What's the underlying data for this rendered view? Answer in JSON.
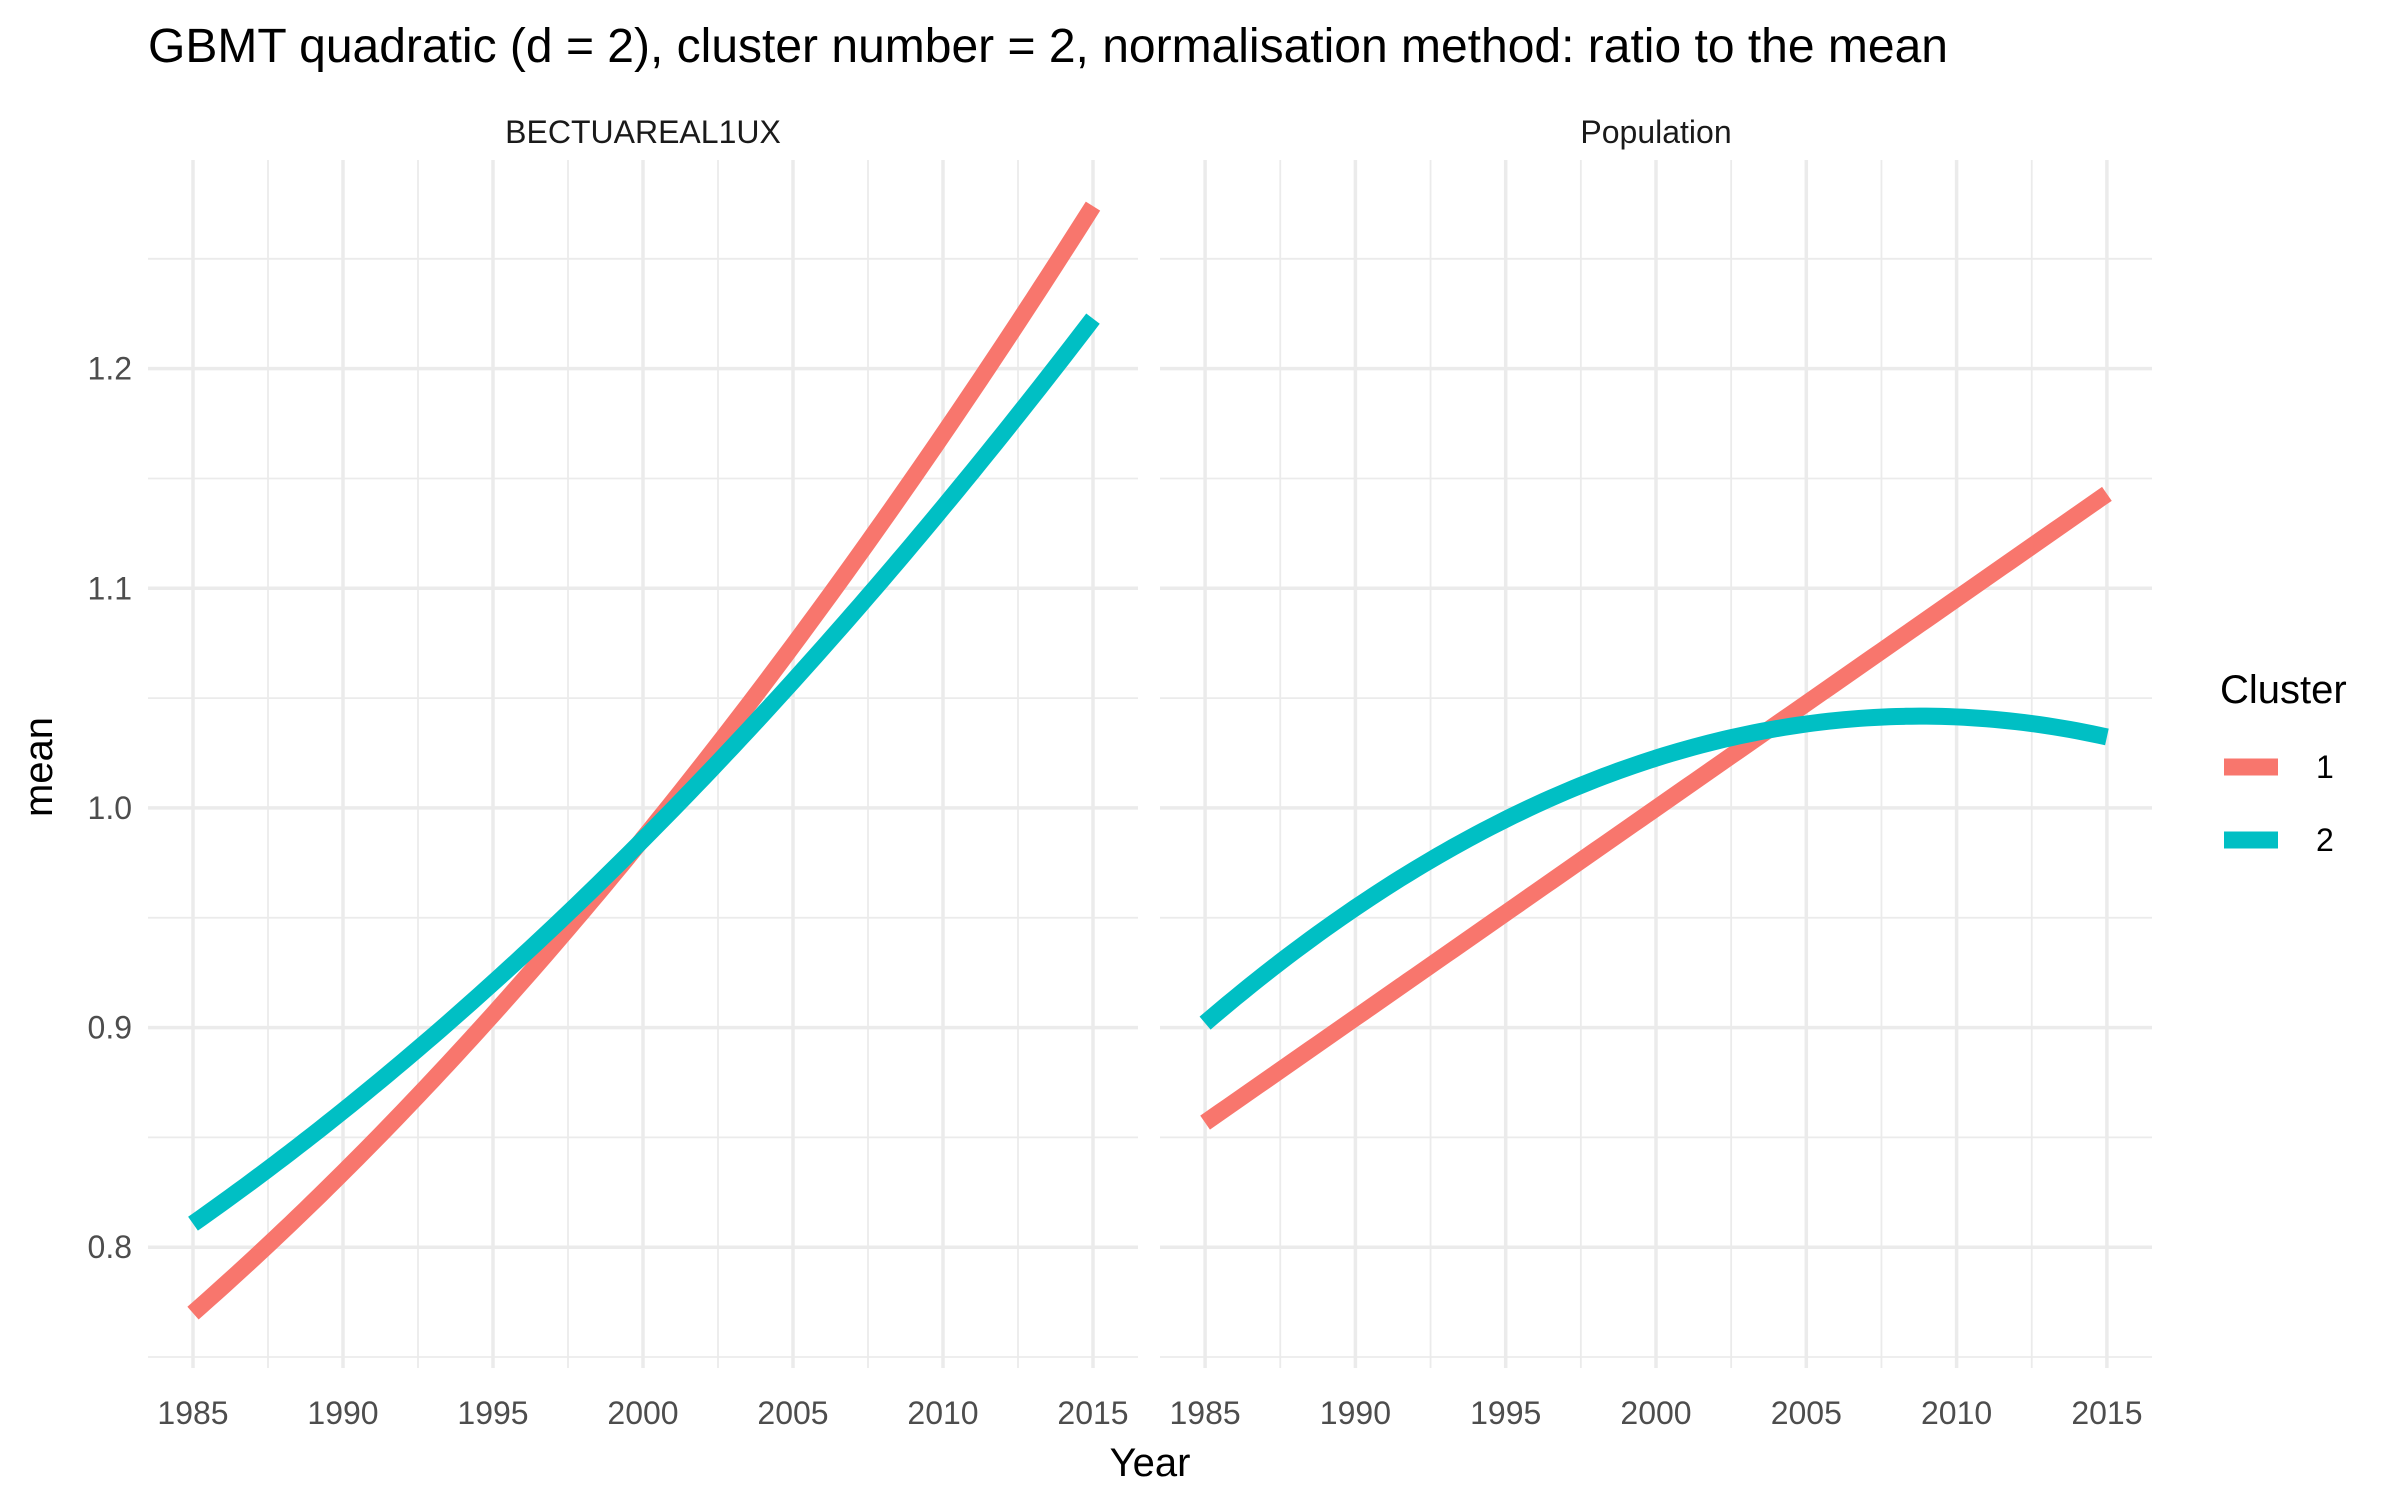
{
  "chart_data": {
    "type": "line",
    "title": "GBMT quadratic (d = 2), cluster number = 2, normalisation method: ratio to the mean",
    "xlabel": "Year",
    "ylabel": "mean",
    "xlim": [
      1983.5,
      2016.5
    ],
    "ylim": [
      0.745,
      1.295
    ],
    "x_ticks": [
      1985,
      1990,
      1995,
      2000,
      2005,
      2010,
      2015
    ],
    "x_tick_labels": [
      "1985",
      "1990",
      "1995",
      "2000",
      "2005",
      "2010",
      "2015"
    ],
    "y_ticks": [
      0.8,
      0.9,
      1.0,
      1.1,
      1.2
    ],
    "y_tick_labels": [
      "0.8",
      "0.9",
      "1.0",
      "1.1",
      "1.2"
    ],
    "grid": true,
    "legend": {
      "title": "Cluster",
      "position": "right",
      "entries": [
        {
          "label": "1",
          "color": "#F8766D"
        },
        {
          "label": "2",
          "color": "#00BFC4"
        }
      ]
    },
    "facets": [
      {
        "label": "BECTUAREAL1UX",
        "series": [
          {
            "name": "1",
            "color": "#F8766D",
            "x": [
              1985,
              1990,
              1995,
              2000,
              2005,
              2010,
              2015
            ],
            "y": [
              0.77,
              0.834,
              0.906,
              0.986,
              1.074,
              1.17,
              1.274
            ]
          },
          {
            "name": "2",
            "color": "#00BFC4",
            "x": [
              1985,
              1990,
              1995,
              2000,
              2005,
              2010,
              2015
            ],
            "y": [
              0.811,
              0.862,
              0.92,
              0.985,
              1.058,
              1.138,
              1.222
            ]
          }
        ]
      },
      {
        "label": "Population",
        "series": [
          {
            "name": "1",
            "color": "#F8766D",
            "x": [
              1985,
              1990,
              1995,
              2000,
              2005,
              2010,
              2015
            ],
            "y": [
              0.857,
              0.904,
              0.952,
              1.0,
              1.048,
              1.095,
              1.143
            ]
          },
          {
            "name": "2",
            "color": "#00BFC4",
            "x": [
              1985,
              1990,
              1995,
              2000,
              2005,
              2010,
              2015
            ],
            "y": [
              0.9,
              0.957,
              0.996,
              1.023,
              1.036,
              1.04,
              1.034
            ]
          }
        ]
      }
    ]
  }
}
